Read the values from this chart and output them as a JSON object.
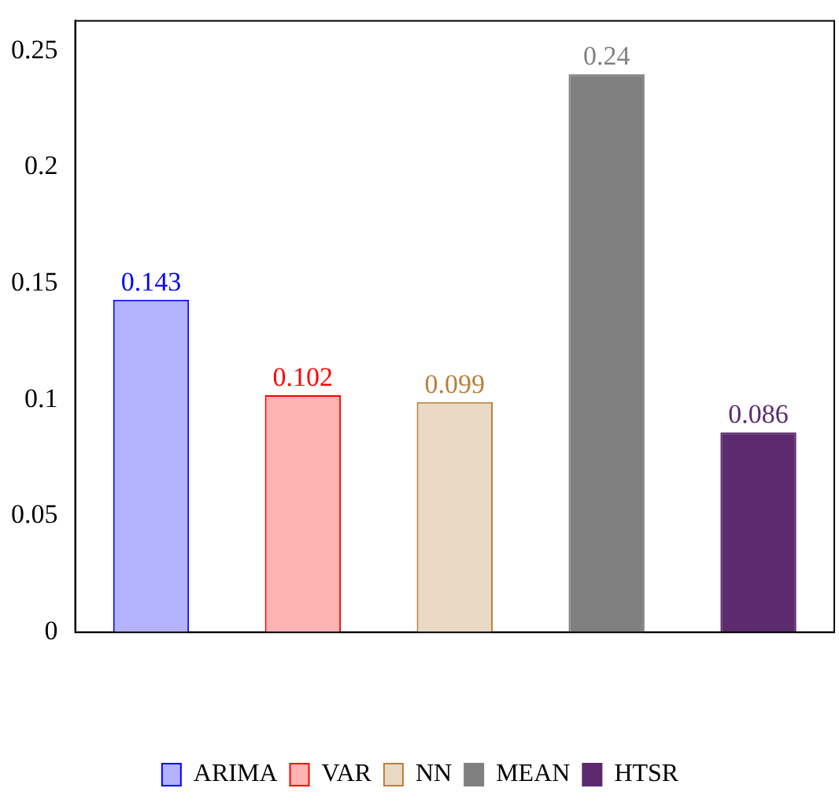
{
  "chart_data": {
    "type": "bar",
    "categories": [
      null,
      null,
      null,
      null,
      null
    ],
    "series": [
      {
        "name": "ARIMA",
        "color": "#b3b3ff",
        "values": [
          0.143,
          null,
          null,
          null,
          null
        ]
      },
      {
        "name": "VAR",
        "color": "#ffb3b3",
        "values": [
          null,
          0.102,
          null,
          null,
          null
        ]
      },
      {
        "name": "NN",
        "color": "#ead9c4",
        "values": [
          null,
          null,
          0.099,
          null,
          null
        ]
      },
      {
        "name": "MEAN",
        "color": "#808080",
        "values": [
          null,
          null,
          null,
          0.24,
          null
        ]
      },
      {
        "name": "HTSR",
        "color": "#5c2a6e",
        "values": [
          null,
          null,
          null,
          null,
          0.086
        ]
      }
    ],
    "ylim": [
      0,
      0.263
    ],
    "yticks": [
      0,
      0.05,
      0.1,
      0.15,
      0.2,
      0.25
    ],
    "grid": false,
    "legend": "bottom",
    "data_labels": true
  }
}
